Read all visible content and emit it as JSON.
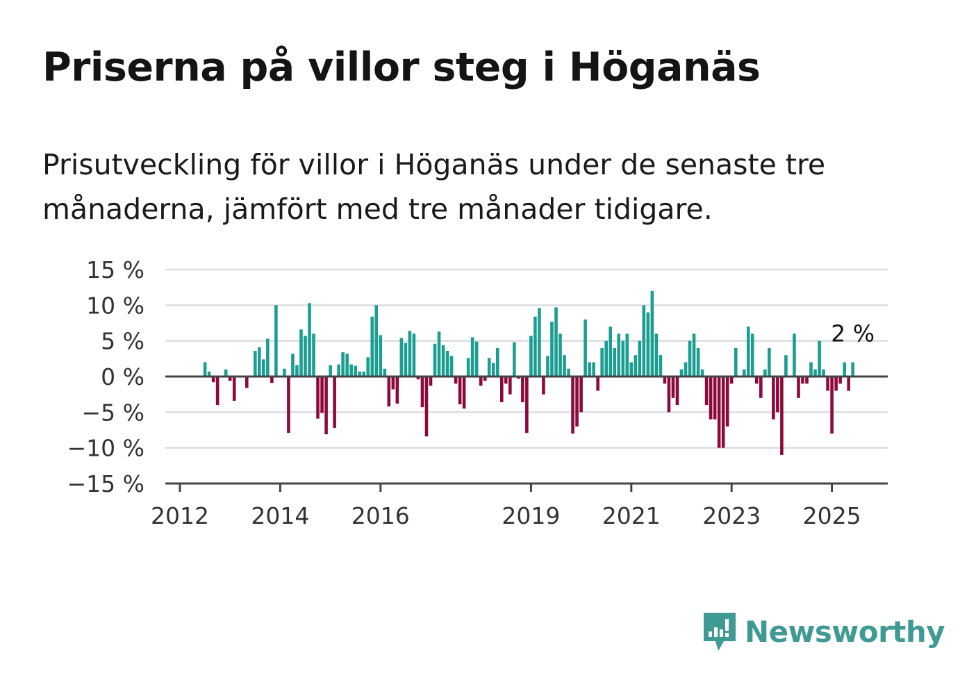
{
  "header": {
    "title": "Priserna på villor steg i Höganäs",
    "subtitle": "Prisutveckling för villor i Höganäs under de senaste tre månaderna, jämfört med tre månader tidigare."
  },
  "brand": {
    "name": "Newsworthy",
    "icon": "newsworthy-logo-icon",
    "color": "#3f9a93"
  },
  "colors": {
    "positive": "#1a9e91",
    "negative": "#8c0a3b",
    "grid": "#dddddd",
    "axis": "#444444"
  },
  "chart_data": {
    "type": "bar",
    "title": "Priserna på villor steg i Höganäs",
    "xlabel": "",
    "ylabel": "",
    "ylim": [
      -15,
      15
    ],
    "y_ticks": [
      15,
      10,
      5,
      0,
      -5,
      -10,
      -15
    ],
    "y_tick_labels": [
      "15 %",
      "10 %",
      "5 %",
      "0 %",
      "−5 %",
      "−10 %",
      "−15 %"
    ],
    "x_tick_labels": [
      "2012",
      "2014",
      "2016",
      "2019",
      "2021",
      "2023",
      "2025"
    ],
    "x_tick_years": [
      2012,
      2014,
      2016,
      2019,
      2021,
      2023,
      2025
    ],
    "x_range": [
      "2012-01",
      "2026-01"
    ],
    "grid": true,
    "annotation": {
      "text": "2 %",
      "target": "last"
    },
    "unit": "%",
    "series": [
      {
        "points": [
          {
            "x": "2012-07",
            "y": 2
          },
          {
            "x": "2012-08",
            "y": 0.7
          },
          {
            "x": "2012-09",
            "y": -0.8
          },
          {
            "x": "2012-10",
            "y": -4
          },
          {
            "x": "2012-12",
            "y": 1
          },
          {
            "x": "2013-01",
            "y": -0.6
          },
          {
            "x": "2013-02",
            "y": -3.4
          },
          {
            "x": "2013-05",
            "y": -1.6
          },
          {
            "x": "2013-07",
            "y": 3.6
          },
          {
            "x": "2013-08",
            "y": 4.1
          },
          {
            "x": "2013-09",
            "y": 2.4
          },
          {
            "x": "2013-10",
            "y": 5.3
          },
          {
            "x": "2013-11",
            "y": -0.9
          },
          {
            "x": "2013-12",
            "y": 10
          },
          {
            "x": "2014-02",
            "y": 1.1
          },
          {
            "x": "2014-03",
            "y": -7.9
          },
          {
            "x": "2014-04",
            "y": 3.2
          },
          {
            "x": "2014-05",
            "y": 1.6
          },
          {
            "x": "2014-06",
            "y": 6.6
          },
          {
            "x": "2014-07",
            "y": 5.7
          },
          {
            "x": "2014-08",
            "y": 10.3
          },
          {
            "x": "2014-09",
            "y": 6
          },
          {
            "x": "2014-10",
            "y": -5.9
          },
          {
            "x": "2014-11",
            "y": -5.1
          },
          {
            "x": "2014-12",
            "y": -8.1
          },
          {
            "x": "2015-01",
            "y": 1.6
          },
          {
            "x": "2015-02",
            "y": -7.2
          },
          {
            "x": "2015-03",
            "y": 1.7
          },
          {
            "x": "2015-04",
            "y": 3.4
          },
          {
            "x": "2015-05",
            "y": 3.2
          },
          {
            "x": "2015-06",
            "y": 1.7
          },
          {
            "x": "2015-07",
            "y": 1.5
          },
          {
            "x": "2015-08",
            "y": 0.7
          },
          {
            "x": "2015-09",
            "y": 0.7
          },
          {
            "x": "2015-10",
            "y": 2.7
          },
          {
            "x": "2015-11",
            "y": 8.4
          },
          {
            "x": "2015-12",
            "y": 10
          },
          {
            "x": "2016-01",
            "y": 5.8
          },
          {
            "x": "2016-02",
            "y": 1.1
          },
          {
            "x": "2016-03",
            "y": -4.2
          },
          {
            "x": "2016-04",
            "y": -1.8
          },
          {
            "x": "2016-05",
            "y": -3.8
          },
          {
            "x": "2016-06",
            "y": 5.4
          },
          {
            "x": "2016-07",
            "y": 4.7
          },
          {
            "x": "2016-08",
            "y": 6.4
          },
          {
            "x": "2016-09",
            "y": 6
          },
          {
            "x": "2016-10",
            "y": -0.4
          },
          {
            "x": "2016-11",
            "y": -4.3
          },
          {
            "x": "2016-12",
            "y": -8.4
          },
          {
            "x": "2017-01",
            "y": -1.3
          },
          {
            "x": "2017-02",
            "y": 4.6
          },
          {
            "x": "2017-03",
            "y": 6.3
          },
          {
            "x": "2017-04",
            "y": 4.4
          },
          {
            "x": "2017-05",
            "y": 3.6
          },
          {
            "x": "2017-06",
            "y": 2.9
          },
          {
            "x": "2017-07",
            "y": -1
          },
          {
            "x": "2017-08",
            "y": -3.9
          },
          {
            "x": "2017-09",
            "y": -4.5
          },
          {
            "x": "2017-10",
            "y": 2.6
          },
          {
            "x": "2017-11",
            "y": 5.5
          },
          {
            "x": "2017-12",
            "y": 4.9
          },
          {
            "x": "2018-01",
            "y": -1.3
          },
          {
            "x": "2018-02",
            "y": -0.6
          },
          {
            "x": "2018-03",
            "y": 2.6
          },
          {
            "x": "2018-04",
            "y": 1.9
          },
          {
            "x": "2018-05",
            "y": 4
          },
          {
            "x": "2018-06",
            "y": -3.6
          },
          {
            "x": "2018-07",
            "y": -1
          },
          {
            "x": "2018-08",
            "y": -2.5
          },
          {
            "x": "2018-09",
            "y": 4.8
          },
          {
            "x": "2018-10",
            "y": -0.3
          },
          {
            "x": "2018-11",
            "y": -3.6
          },
          {
            "x": "2018-12",
            "y": -7.9
          },
          {
            "x": "2019-01",
            "y": 5.7
          },
          {
            "x": "2019-02",
            "y": 8.4
          },
          {
            "x": "2019-03",
            "y": 9.6
          },
          {
            "x": "2019-04",
            "y": -2.5
          },
          {
            "x": "2019-05",
            "y": 2.9
          },
          {
            "x": "2019-06",
            "y": 7.7
          },
          {
            "x": "2019-07",
            "y": 9.7
          },
          {
            "x": "2019-08",
            "y": 6
          },
          {
            "x": "2019-09",
            "y": 3
          },
          {
            "x": "2019-10",
            "y": 1.1
          },
          {
            "x": "2019-11",
            "y": -8
          },
          {
            "x": "2019-12",
            "y": -7
          },
          {
            "x": "2020-01",
            "y": -5
          },
          {
            "x": "2020-02",
            "y": 8
          },
          {
            "x": "2020-03",
            "y": 2
          },
          {
            "x": "2020-04",
            "y": 2
          },
          {
            "x": "2020-05",
            "y": -2
          },
          {
            "x": "2020-06",
            "y": 4
          },
          {
            "x": "2020-07",
            "y": 5
          },
          {
            "x": "2020-08",
            "y": 7
          },
          {
            "x": "2020-09",
            "y": 4
          },
          {
            "x": "2020-10",
            "y": 6
          },
          {
            "x": "2020-11",
            "y": 5
          },
          {
            "x": "2020-12",
            "y": 6
          },
          {
            "x": "2021-01",
            "y": 2
          },
          {
            "x": "2021-02",
            "y": 3
          },
          {
            "x": "2021-03",
            "y": 5
          },
          {
            "x": "2021-04",
            "y": 10
          },
          {
            "x": "2021-05",
            "y": 9
          },
          {
            "x": "2021-06",
            "y": 12
          },
          {
            "x": "2021-07",
            "y": 6
          },
          {
            "x": "2021-08",
            "y": 3
          },
          {
            "x": "2021-09",
            "y": -1
          },
          {
            "x": "2021-10",
            "y": -5
          },
          {
            "x": "2021-11",
            "y": -3
          },
          {
            "x": "2021-12",
            "y": -4
          },
          {
            "x": "2022-01",
            "y": 1
          },
          {
            "x": "2022-02",
            "y": 2
          },
          {
            "x": "2022-03",
            "y": 5
          },
          {
            "x": "2022-04",
            "y": 6
          },
          {
            "x": "2022-05",
            "y": 4
          },
          {
            "x": "2022-06",
            "y": 1
          },
          {
            "x": "2022-07",
            "y": -4
          },
          {
            "x": "2022-08",
            "y": -6
          },
          {
            "x": "2022-09",
            "y": -6
          },
          {
            "x": "2022-10",
            "y": -10
          },
          {
            "x": "2022-11",
            "y": -10
          },
          {
            "x": "2022-12",
            "y": -7
          },
          {
            "x": "2023-01",
            "y": -1
          },
          {
            "x": "2023-02",
            "y": 4
          },
          {
            "x": "2023-04",
            "y": 1
          },
          {
            "x": "2023-05",
            "y": 7
          },
          {
            "x": "2023-06",
            "y": 6
          },
          {
            "x": "2023-07",
            "y": -1
          },
          {
            "x": "2023-08",
            "y": -3
          },
          {
            "x": "2023-09",
            "y": 1
          },
          {
            "x": "2023-10",
            "y": 4
          },
          {
            "x": "2023-11",
            "y": -6
          },
          {
            "x": "2023-12",
            "y": -5
          },
          {
            "x": "2024-01",
            "y": -11
          },
          {
            "x": "2024-02",
            "y": 3
          },
          {
            "x": "2024-04",
            "y": 6
          },
          {
            "x": "2024-05",
            "y": -3
          },
          {
            "x": "2024-06",
            "y": -1
          },
          {
            "x": "2024-07",
            "y": -1
          },
          {
            "x": "2024-08",
            "y": 2
          },
          {
            "x": "2024-09",
            "y": 1
          },
          {
            "x": "2024-10",
            "y": 5
          },
          {
            "x": "2024-11",
            "y": 1
          },
          {
            "x": "2024-12",
            "y": -2
          },
          {
            "x": "2025-01",
            "y": -8
          },
          {
            "x": "2025-02",
            "y": -2
          },
          {
            "x": "2025-03",
            "y": -1
          },
          {
            "x": "2025-04",
            "y": 2
          },
          {
            "x": "2025-05",
            "y": -2
          },
          {
            "x": "2025-06",
            "y": 2
          }
        ]
      }
    ]
  }
}
